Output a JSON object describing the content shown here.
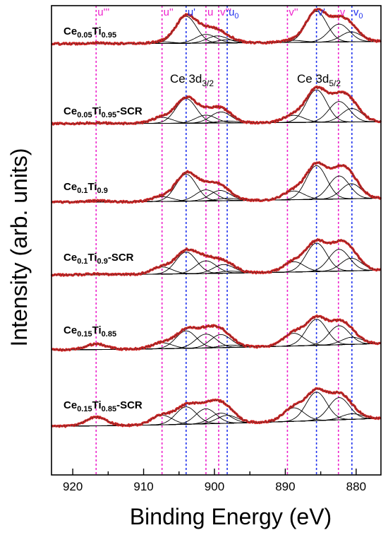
{
  "chart_data": {
    "type": "line",
    "xlabel": "Binding Energy (eV)",
    "ylabel": "Intensity (arb. units)",
    "xlim": [
      923,
      876.5
    ],
    "x_ticks": [
      920,
      910,
      900,
      890,
      880
    ],
    "x_reversed": true,
    "y_tick_labels": false,
    "colors": {
      "data": "#cc2222",
      "fit": "#000000",
      "pink_ref": "#ee22cc",
      "blue_ref": "#2233ee"
    },
    "region_labels": [
      {
        "base": "Ce 3d",
        "sub": "3/2"
      },
      {
        "base": "Ce 3d",
        "sub": "5/2"
      }
    ],
    "reference_lines": [
      {
        "pos": 916.7,
        "color": "pink",
        "label": "u'''",
        "sub": ""
      },
      {
        "pos": 907.4,
        "color": "pink",
        "label": "u''",
        "sub": ""
      },
      {
        "pos": 904.0,
        "color": "blue",
        "label": "u'",
        "sub": ""
      },
      {
        "pos": 901.2,
        "color": "pink",
        "label": "u",
        "sub": ""
      },
      {
        "pos": 899.4,
        "color": "pink",
        "label": "v'''",
        "sub": ""
      },
      {
        "pos": 898.2,
        "color": "blue",
        "label": "u",
        "sub": "0"
      },
      {
        "pos": 889.7,
        "color": "pink",
        "label": "v''",
        "sub": ""
      },
      {
        "pos": 885.6,
        "color": "blue",
        "label": "v'",
        "sub": ""
      },
      {
        "pos": 882.5,
        "color": "pink",
        "label": "v",
        "sub": ""
      },
      {
        "pos": 880.6,
        "color": "blue",
        "label": "v",
        "sub": "0"
      }
    ],
    "series": [
      {
        "parts": [
          [
            "Ce",
            ""
          ],
          [
            "0.05",
            "sub"
          ],
          [
            "Ti",
            ""
          ],
          [
            "0.95",
            "sub"
          ]
        ],
        "baseline": [
          0.0,
          0.06
        ],
        "peaks": [
          [
            916.7,
            0.02
          ],
          [
            907.4,
            0.04
          ],
          [
            904.0,
            0.68
          ],
          [
            901.2,
            0.22
          ],
          [
            899.6,
            0.18
          ],
          [
            898.2,
            0.08
          ],
          [
            888.8,
            0.05
          ],
          [
            885.6,
            0.78
          ],
          [
            882.4,
            0.45
          ],
          [
            880.7,
            0.25
          ]
        ]
      },
      {
        "parts": [
          [
            "Ce",
            ""
          ],
          [
            "0.05",
            "sub"
          ],
          [
            "Ti",
            ""
          ],
          [
            "0.95",
            "sub"
          ],
          [
            "-SCR",
            ""
          ]
        ],
        "baseline": [
          0.0,
          0.05
        ],
        "peaks": [
          [
            916.7,
            0.02
          ],
          [
            907.4,
            0.15
          ],
          [
            904.0,
            0.62
          ],
          [
            901.2,
            0.2
          ],
          [
            899.1,
            0.28
          ],
          [
            898.3,
            0.05
          ],
          [
            888.8,
            0.18
          ],
          [
            885.6,
            0.82
          ],
          [
            882.4,
            0.52
          ],
          [
            880.6,
            0.34
          ]
        ]
      },
      {
        "parts": [
          [
            "Ce",
            ""
          ],
          [
            "0.1",
            "sub"
          ],
          [
            "Ti",
            ""
          ],
          [
            "0.9",
            "sub"
          ]
        ],
        "baseline": [
          0.0,
          0.1
        ],
        "peaks": [
          [
            916.7,
            0.03
          ],
          [
            907.4,
            0.12
          ],
          [
            904.0,
            0.68
          ],
          [
            901.2,
            0.28
          ],
          [
            899.2,
            0.26
          ],
          [
            898.3,
            0.06
          ],
          [
            888.8,
            0.22
          ],
          [
            885.6,
            0.85
          ],
          [
            882.4,
            0.58
          ],
          [
            880.7,
            0.38
          ]
        ]
      },
      {
        "parts": [
          [
            "Ce",
            ""
          ],
          [
            "0.1",
            "sub"
          ],
          [
            "Ti",
            ""
          ],
          [
            "0.9",
            "sub"
          ],
          [
            "-SCR",
            ""
          ]
        ],
        "baseline": [
          0.0,
          0.12
        ],
        "peaks": [
          [
            916.7,
            0.02
          ],
          [
            907.4,
            0.18
          ],
          [
            904.0,
            0.55
          ],
          [
            901.2,
            0.32
          ],
          [
            898.7,
            0.22
          ],
          [
            897.8,
            0.05
          ],
          [
            888.8,
            0.26
          ],
          [
            885.6,
            0.72
          ],
          [
            882.4,
            0.55
          ],
          [
            880.7,
            0.32
          ]
        ]
      },
      {
        "parts": [
          [
            "Ce",
            ""
          ],
          [
            "0.15",
            "sub"
          ],
          [
            "Ti",
            ""
          ],
          [
            "0.85",
            "sub"
          ]
        ],
        "baseline": [
          0.0,
          0.16
        ],
        "peaks": [
          [
            916.7,
            0.14
          ],
          [
            907.4,
            0.15
          ],
          [
            904.0,
            0.44
          ],
          [
            901.2,
            0.35
          ],
          [
            899.1,
            0.33
          ],
          [
            897.8,
            0.06
          ],
          [
            888.8,
            0.32
          ],
          [
            885.6,
            0.66
          ],
          [
            882.4,
            0.48
          ],
          [
            880.6,
            0.18
          ]
        ]
      },
      {
        "parts": [
          [
            "Ce",
            ""
          ],
          [
            "0.15",
            "sub"
          ],
          [
            "Ti",
            ""
          ],
          [
            "0.85",
            "sub"
          ],
          [
            "-SCR",
            ""
          ]
        ],
        "baseline": [
          0.0,
          0.2
        ],
        "peaks": [
          [
            916.7,
            0.22
          ],
          [
            907.4,
            0.24
          ],
          [
            904.0,
            0.44
          ],
          [
            901.2,
            0.38
          ],
          [
            899.1,
            0.26
          ],
          [
            898.2,
            0.2
          ],
          [
            888.8,
            0.34
          ],
          [
            885.6,
            0.72
          ],
          [
            882.4,
            0.56
          ],
          [
            880.6,
            0.14
          ]
        ]
      }
    ]
  }
}
